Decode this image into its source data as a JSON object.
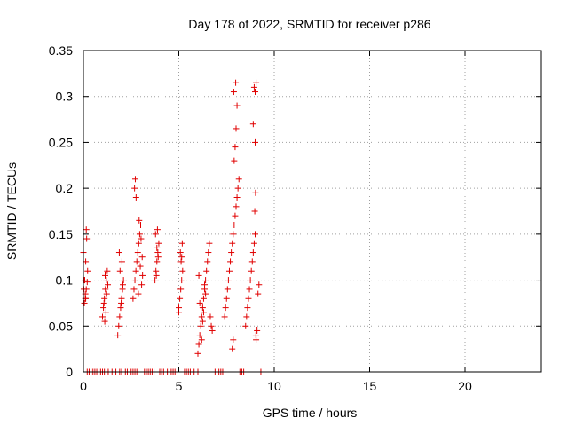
{
  "chart_data": {
    "type": "scatter",
    "title": "Day 178 of 2022, SRMTID for receiver p286",
    "xlabel": "GPS time / hours",
    "ylabel": "SRMTID / TECUs",
    "xlim": [
      0,
      24
    ],
    "ylim": [
      0,
      0.35
    ],
    "xticks": [
      0,
      5,
      10,
      15,
      20
    ],
    "yticks": [
      0,
      0.05,
      0.1,
      0.15,
      0.2,
      0.25,
      0.3,
      0.35
    ],
    "xtick_labels": [
      "0",
      "5",
      "10",
      "15",
      "20"
    ],
    "ytick_labels": [
      "0",
      "0.05",
      "0.1",
      "0.15",
      "0.2",
      "0.25",
      "0.3",
      "0.35"
    ],
    "grid": true,
    "marker": "+",
    "color": "#e00000",
    "series": [
      {
        "name": "SRMTID",
        "x": [
          0.0,
          0.02,
          0.05,
          0.07,
          0.1,
          0.12,
          0.15,
          0.17,
          0.2,
          0.22,
          0.1,
          0.15,
          0.05,
          0.12,
          1.0,
          1.05,
          1.1,
          1.15,
          1.2,
          1.25,
          1.12,
          1.18,
          1.08,
          1.22,
          1.14,
          1.28,
          1.8,
          1.85,
          1.9,
          1.95,
          2.0,
          2.05,
          2.1,
          1.92,
          2.02,
          1.88,
          2.07,
          1.98,
          2.6,
          2.65,
          2.7,
          2.75,
          2.8,
          2.85,
          2.9,
          2.95,
          3.0,
          3.05,
          3.1,
          2.72,
          2.68,
          2.76,
          2.92,
          3.02,
          2.88,
          2.98,
          3.08,
          3.75,
          3.8,
          3.85,
          3.9,
          3.95,
          3.78,
          3.88,
          3.82,
          3.92,
          3.85,
          5.0,
          5.05,
          5.1,
          5.15,
          5.2,
          5.12,
          5.08,
          5.18,
          5.0,
          5.15,
          6.0,
          6.05,
          6.1,
          6.15,
          6.2,
          6.25,
          6.3,
          6.35,
          6.4,
          6.45,
          6.5,
          6.55,
          6.6,
          6.65,
          6.7,
          6.75,
          6.2,
          6.3,
          6.1,
          6.4,
          6.25,
          6.35,
          6.05,
          7.4,
          7.45,
          7.5,
          7.55,
          7.6,
          7.65,
          7.7,
          7.75,
          7.8,
          7.85,
          7.9,
          7.95,
          8.0,
          8.05,
          8.1,
          8.15,
          7.8,
          7.85,
          7.9,
          7.95,
          8.0,
          8.05,
          7.88,
          7.98,
          8.5,
          8.55,
          8.6,
          8.65,
          8.7,
          8.75,
          8.8,
          8.85,
          8.9,
          8.95,
          9.0,
          9.05,
          9.1,
          9.15,
          9.2,
          8.9,
          8.95,
          9.0,
          9.05,
          9.0,
          9.02,
          8.98,
          9.04,
          0.2,
          0.3,
          0.4,
          0.5,
          0.6,
          0.7,
          0.9,
          1.0,
          1.1,
          1.3,
          1.5,
          1.7,
          1.9,
          2.0,
          2.2,
          2.3,
          2.5,
          2.6,
          2.7,
          2.8,
          3.2,
          3.3,
          3.4,
          3.5,
          3.6,
          3.7,
          4.0,
          4.1,
          4.2,
          4.4,
          4.6,
          4.7,
          4.8,
          5.3,
          5.4,
          5.5,
          5.6,
          5.8,
          6.0,
          6.9,
          7.0,
          7.1,
          7.2,
          7.3,
          8.2,
          8.3,
          8.4,
          9.3
        ],
        "y": [
          0.13,
          0.09,
          0.075,
          0.1,
          0.085,
          0.12,
          0.155,
          0.145,
          0.098,
          0.11,
          0.08,
          0.09,
          0.1,
          0.08,
          0.06,
          0.07,
          0.08,
          0.09,
          0.1,
          0.11,
          0.055,
          0.065,
          0.075,
          0.085,
          0.105,
          0.095,
          0.04,
          0.05,
          0.06,
          0.07,
          0.08,
          0.09,
          0.1,
          0.11,
          0.12,
          0.13,
          0.095,
          0.075,
          0.08,
          0.09,
          0.1,
          0.11,
          0.12,
          0.13,
          0.14,
          0.15,
          0.16,
          0.095,
          0.105,
          0.21,
          0.2,
          0.19,
          0.165,
          0.145,
          0.085,
          0.115,
          0.125,
          0.1,
          0.11,
          0.12,
          0.13,
          0.14,
          0.15,
          0.155,
          0.105,
          0.125,
          0.135,
          0.07,
          0.08,
          0.09,
          0.1,
          0.11,
          0.12,
          0.13,
          0.14,
          0.065,
          0.125,
          0.02,
          0.03,
          0.04,
          0.05,
          0.06,
          0.07,
          0.08,
          0.09,
          0.1,
          0.11,
          0.12,
          0.13,
          0.14,
          0.06,
          0.05,
          0.045,
          0.035,
          0.065,
          0.075,
          0.085,
          0.055,
          0.095,
          0.105,
          0.06,
          0.07,
          0.08,
          0.09,
          0.1,
          0.11,
          0.12,
          0.13,
          0.14,
          0.15,
          0.16,
          0.17,
          0.18,
          0.19,
          0.2,
          0.21,
          0.025,
          0.035,
          0.23,
          0.245,
          0.265,
          0.29,
          0.305,
          0.315,
          0.05,
          0.06,
          0.07,
          0.08,
          0.09,
          0.1,
          0.11,
          0.12,
          0.13,
          0.14,
          0.15,
          0.035,
          0.045,
          0.085,
          0.095,
          0.27,
          0.31,
          0.305,
          0.315,
          0.25,
          0.195,
          0.175,
          0.04,
          0.0,
          0.0,
          0.0,
          0.0,
          0.0,
          0.0,
          0.0,
          0.0,
          0.0,
          0.0,
          0.0,
          0.0,
          0.0,
          0.0,
          0.0,
          0.0,
          0.0,
          0.0,
          0.0,
          0.0,
          0.0,
          0.0,
          0.0,
          0.0,
          0.0,
          0.0,
          0.0,
          0.0,
          0.0,
          0.0,
          0.0,
          0.0,
          0.0,
          0.0,
          0.0,
          0.0,
          0.0,
          0.0,
          0.0,
          0.0,
          0.0,
          0.0,
          0.0,
          0.0,
          0.0,
          0.0,
          0.0,
          0.0
        ]
      }
    ]
  }
}
